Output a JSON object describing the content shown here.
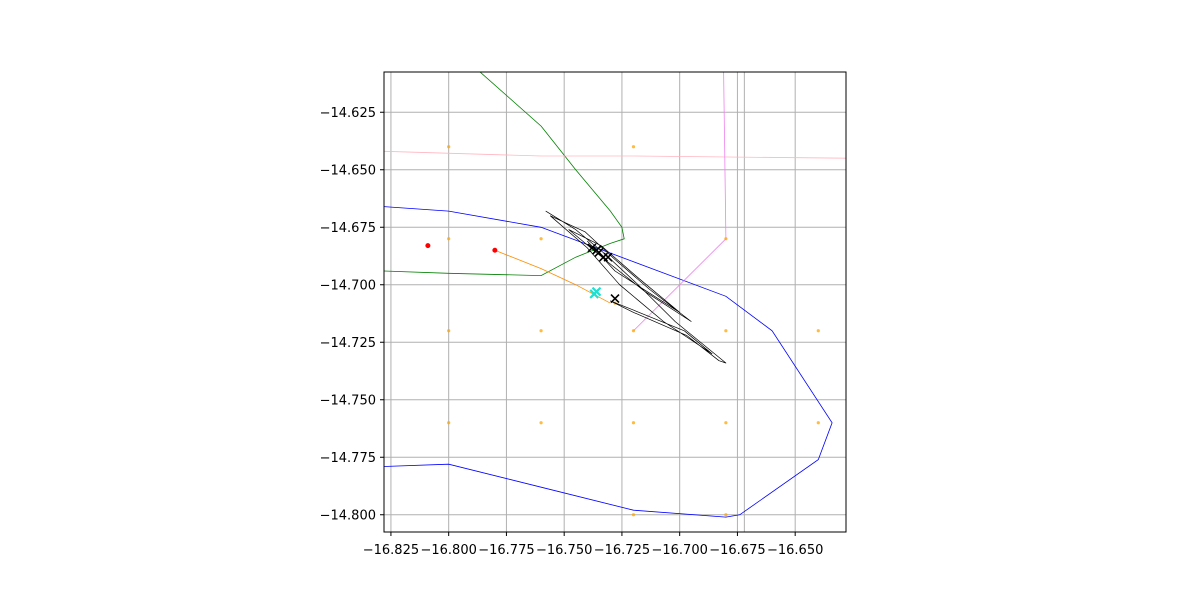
{
  "chart_data": {
    "type": "scatter",
    "title": "",
    "xlabel": "",
    "ylabel": "",
    "xlim": [
      -16.828,
      -16.628
    ],
    "ylim": [
      -14.8075,
      -14.6075
    ],
    "grid": true,
    "x_ticks": [
      -16.825,
      -16.8,
      -16.775,
      -16.75,
      -16.725,
      -16.7,
      -16.675,
      -16.65
    ],
    "x_tick_labels": [
      "−16.825",
      "−16.800",
      "−16.775",
      "−16.750",
      "−16.725",
      "−16.700",
      "−16.675",
      "−16.650"
    ],
    "y_ticks": [
      -14.625,
      -14.65,
      -14.675,
      -14.7,
      -14.725,
      -14.75,
      -14.775,
      -14.8
    ],
    "y_tick_labels": [
      "−14.625",
      "−14.650",
      "−14.675",
      "−14.700",
      "−14.725",
      "−14.750",
      "−14.775",
      "−14.800"
    ],
    "extra_vlines": [
      -16.672
    ],
    "lines": [
      {
        "color": "#0000ff",
        "points": [
          [
            -16.828,
            -14.666
          ],
          [
            -16.8,
            -14.668
          ],
          [
            -16.76,
            -14.675
          ],
          [
            -16.72,
            -14.69
          ],
          [
            -16.68,
            -14.705
          ],
          [
            -16.66,
            -14.72
          ],
          [
            -16.634,
            -14.76
          ],
          [
            -16.64,
            -14.776
          ],
          [
            -16.674,
            -14.8
          ],
          [
            -16.68,
            -14.801
          ],
          [
            -16.72,
            -14.798
          ],
          [
            -16.76,
            -14.788
          ],
          [
            -16.8,
            -14.778
          ],
          [
            -16.828,
            -14.779
          ]
        ]
      },
      {
        "color": "#008000",
        "points": [
          [
            -16.787,
            -14.607
          ],
          [
            -16.76,
            -14.631
          ],
          [
            -16.745,
            -14.65
          ],
          [
            -16.73,
            -14.668
          ],
          [
            -16.725,
            -14.675
          ],
          [
            -16.724,
            -14.68
          ],
          [
            -16.73,
            -14.682
          ],
          [
            -16.745,
            -14.688
          ],
          [
            -16.76,
            -14.696
          ],
          [
            -16.8,
            -14.695
          ],
          [
            -16.828,
            -14.694
          ]
        ]
      },
      {
        "color": "#ffb6c1",
        "points": [
          [
            -16.828,
            -14.642
          ],
          [
            -16.76,
            -14.644
          ],
          [
            -16.72,
            -14.644
          ],
          [
            -16.628,
            -14.645
          ]
        ]
      },
      {
        "color": "#ee82ee",
        "points": [
          [
            -16.681,
            -14.607
          ],
          [
            -16.68,
            -14.68
          ],
          [
            -16.72,
            -14.72
          ]
        ]
      },
      {
        "color": "#ff8c00",
        "points": [
          [
            -16.78,
            -14.685
          ],
          [
            -16.76,
            -14.693
          ],
          [
            -16.745,
            -14.7
          ],
          [
            -16.73,
            -14.708
          ]
        ]
      }
    ],
    "track": {
      "color": "#000000",
      "points": [
        [
          -16.758,
          -14.668
        ],
        [
          -16.745,
          -14.676
        ],
        [
          -16.733,
          -14.686
        ],
        [
          -16.718,
          -14.7
        ],
        [
          -16.702,
          -14.716
        ],
        [
          -16.68,
          -14.734
        ],
        [
          -16.683,
          -14.733
        ],
        [
          -16.697,
          -14.722
        ],
        [
          -16.72,
          -14.712
        ],
        [
          -16.73,
          -14.707
        ],
        [
          -16.72,
          -14.711
        ],
        [
          -16.698,
          -14.72
        ],
        [
          -16.686,
          -14.73
        ],
        [
          -16.707,
          -14.716
        ],
        [
          -16.726,
          -14.7
        ],
        [
          -16.74,
          -14.684
        ],
        [
          -16.756,
          -14.67
        ],
        [
          -16.741,
          -14.677
        ],
        [
          -16.728,
          -14.689
        ],
        [
          -16.713,
          -14.702
        ],
        [
          -16.695,
          -14.716
        ],
        [
          -16.715,
          -14.703
        ],
        [
          -16.73,
          -14.691
        ],
        [
          -16.748,
          -14.676
        ],
        [
          -16.734,
          -14.683
        ],
        [
          -16.718,
          -14.697
        ],
        [
          -16.7,
          -14.712
        ],
        [
          -16.728,
          -14.694
        ],
        [
          -16.74,
          -14.681
        ]
      ]
    },
    "x_markers": [
      [
        -16.738,
        -14.684
      ],
      [
        -16.735,
        -14.686
      ],
      [
        -16.733,
        -14.688
      ],
      [
        -16.731,
        -14.688
      ],
      [
        -16.736,
        -14.685
      ],
      [
        -16.728,
        -14.706
      ]
    ],
    "cyan_markers": [
      [
        -16.737,
        -14.704
      ],
      [
        -16.736,
        -14.703
      ]
    ],
    "red_points": [
      [
        -16.809,
        -14.683
      ],
      [
        -16.78,
        -14.685
      ]
    ],
    "orange_points": [
      [
        -16.8,
        -14.64
      ],
      [
        -16.72,
        -14.64
      ],
      [
        -16.8,
        -14.68
      ],
      [
        -16.76,
        -14.68
      ],
      [
        -16.68,
        -14.68
      ],
      [
        -16.8,
        -14.72
      ],
      [
        -16.76,
        -14.72
      ],
      [
        -16.72,
        -14.72
      ],
      [
        -16.68,
        -14.72
      ],
      [
        -16.64,
        -14.72
      ],
      [
        -16.8,
        -14.76
      ],
      [
        -16.76,
        -14.76
      ],
      [
        -16.72,
        -14.76
      ],
      [
        -16.68,
        -14.76
      ],
      [
        -16.64,
        -14.76
      ],
      [
        -16.72,
        -14.8
      ],
      [
        -16.68,
        -14.8
      ],
      [
        -16.728,
        -14.708
      ]
    ]
  }
}
